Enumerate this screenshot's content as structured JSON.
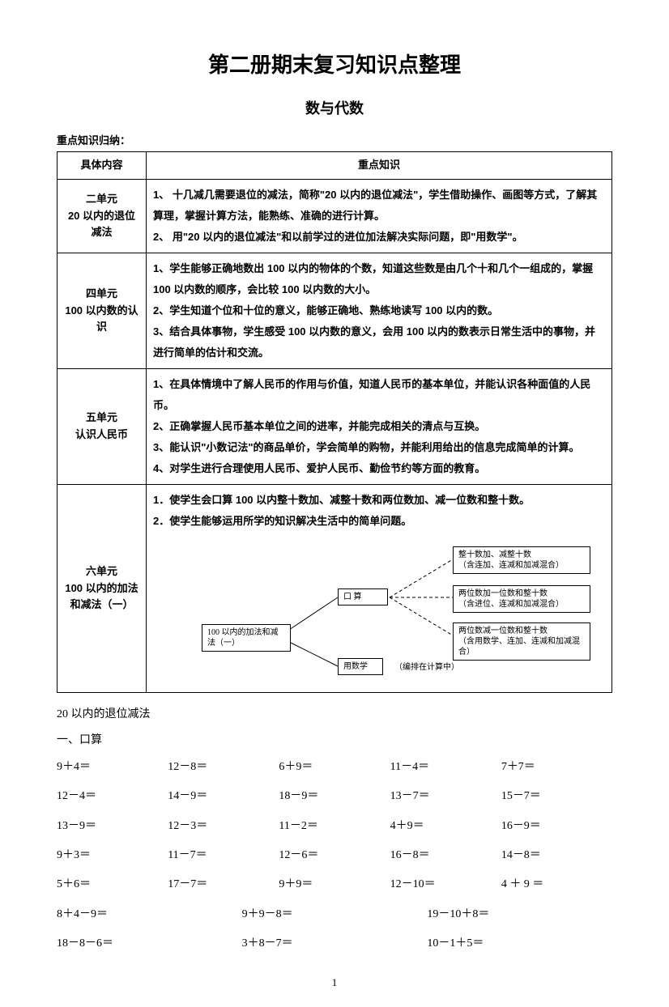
{
  "title": "第二册期末复习知识点整理",
  "subtitle": "数与代数",
  "section_label": "重点知识归纳：",
  "table": {
    "headers": [
      "具体内容",
      "重点知识"
    ],
    "rows": [
      {
        "unit": "二单元\n20 以内的退位减法",
        "lines": [
          "1、 十几减几需要退位的减法，简称\"20 以内的退位减法\"，学生借助操作、画图等方式，了解其算理，掌握计算方法，能熟练、准确的进行计算。",
          "2、 用\"20 以内的退位减法\"和以前学过的进位加法解决实际问题，即\"用数学\"。"
        ]
      },
      {
        "unit": "四单元\n100 以内数的认识",
        "lines": [
          "1、学生能够正确地数出 100 以内的物体的个数，知道这些数是由几个十和几个一组成的，掌握 100 以内数的顺序，会比较 100 以内数的大小。",
          "2、学生知道个位和十位的意义，能够正确地、熟练地读写 100 以内的数。",
          "3、结合具体事物，学生感受 100 以内数的意义，会用 100 以内的数表示日常生活中的事物，并进行简单的估计和交流。"
        ]
      },
      {
        "unit": "五单元\n认识人民币",
        "lines": [
          "1、在具体情境中了解人民币的作用与价值，知道人民币的基本单位，并能认识各种面值的人民币。",
          "2、正确掌握人民币基本单位之间的进率，并能完成相关的清点与互换。",
          "3、能认识\"小数记法\"的商品单价，学会简单的购物，并能利用给出的信息完成简单的计算。",
          "4、对学生进行合理使用人民币、爱护人民币、勤俭节约等方面的教育。"
        ]
      },
      {
        "unit": "六单元\n100 以内的加法和减法（一）",
        "lines": [
          "1．使学生会口算 100 以内整十数加、减整十数和两位数加、减一位数和整十数。",
          "2．使学生能够运用所学的知识解决生活中的简单问题。"
        ],
        "diagram": {
          "root": "100 以内的加法和减法（一）",
          "mid_top": "口    算",
          "mid_bottom": "用数学",
          "mid_note": "（编排在计算中）",
          "leaf1": "整十数加、减整十数\n（含连加、连减和加减混合）",
          "leaf2": "两位数加一位数和整十数\n（含进位、连减和加减混合）",
          "leaf3": "两位数减一位数和整十数\n（含用数学、连加、连减和加减混合）"
        }
      }
    ]
  },
  "after": {
    "heading": "20 以内的退位减法",
    "sub": "一、口算",
    "grid5": [
      [
        "9＋4＝",
        "12－8＝",
        "6＋9＝",
        "11－4＝",
        "7＋7＝"
      ],
      [
        "12－4＝",
        "14－9＝",
        "18－9＝",
        "13－7＝",
        "15－7＝"
      ],
      [
        "13－9＝",
        "12－3＝",
        "11－2＝",
        "4＋9＝",
        "16－9＝"
      ],
      [
        "9＋3＝",
        "11－7＝",
        "12－6＝",
        "16－8＝",
        "14－8＝"
      ],
      [
        "5＋6＝",
        "17－7＝",
        "9＋9＝",
        "12－10＝",
        "4 ＋ 9 ＝"
      ]
    ],
    "grid3": [
      [
        "8＋4－9＝",
        "9＋9－8＝",
        "19－10＋8＝"
      ],
      [
        "18－8－6＝",
        "3＋8－7＝",
        "10－1＋5＝"
      ]
    ]
  },
  "page_number": "1"
}
